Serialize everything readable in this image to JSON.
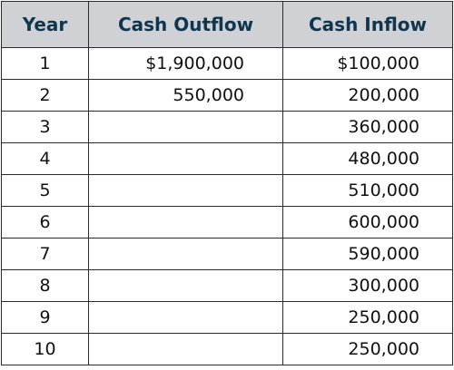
{
  "table": {
    "headers": [
      "Year",
      "Cash Outflow",
      "Cash Inflow"
    ],
    "rows": [
      {
        "year": "1",
        "outflow": "$1,900,000",
        "inflow": "$100,000"
      },
      {
        "year": "2",
        "outflow": "550,000",
        "inflow": "200,000"
      },
      {
        "year": "3",
        "outflow": "",
        "inflow": "360,000"
      },
      {
        "year": "4",
        "outflow": "",
        "inflow": "480,000"
      },
      {
        "year": "5",
        "outflow": "",
        "inflow": "510,000"
      },
      {
        "year": "6",
        "outflow": "",
        "inflow": "600,000"
      },
      {
        "year": "7",
        "outflow": "",
        "inflow": "590,000"
      },
      {
        "year": "8",
        "outflow": "",
        "inflow": "300,000"
      },
      {
        "year": "9",
        "outflow": "",
        "inflow": "250,000"
      },
      {
        "year": "10",
        "outflow": "",
        "inflow": "250,000"
      }
    ]
  }
}
